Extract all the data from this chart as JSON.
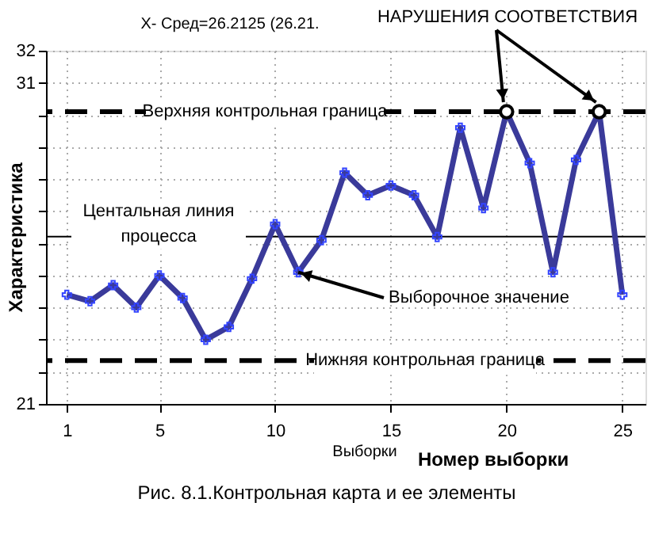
{
  "chart_data": {
    "type": "line",
    "title": "X-   Сред=26.2125 (26.21.",
    "xlabel": "Номер выборки",
    "ylabel": "Характеристика",
    "x": [
      1,
      2,
      3,
      4,
      5,
      6,
      7,
      8,
      9,
      10,
      11,
      12,
      13,
      14,
      15,
      16,
      17,
      18,
      19,
      20,
      21,
      22,
      23,
      24,
      25
    ],
    "series": [
      {
        "color": "#3a3a9a",
        "values": [
          24.4,
          24.2,
          24.7,
          24.0,
          25.0,
          24.3,
          23.0,
          23.4,
          24.9,
          26.6,
          25.1,
          26.1,
          28.2,
          27.5,
          27.8,
          27.5,
          26.2,
          29.6,
          27.1,
          30.1,
          28.5,
          25.1,
          28.6,
          30.1,
          24.4
        ]
      }
    ],
    "xlim": [
      0.1,
      26
    ],
    "xticks": [
      1,
      5,
      10,
      15,
      20,
      25
    ],
    "ylim": [
      21,
      32
    ],
    "yticks": [
      21,
      {
        "value": 22,
        "label": null
      },
      {
        "value": 23,
        "label": null
      },
      {
        "value": 24,
        "label": null
      },
      {
        "value": 25,
        "label": null
      },
      {
        "value": 26,
        "label": null
      },
      {
        "value": 27,
        "label": null
      },
      {
        "value": 28,
        "label": null
      },
      {
        "value": 29,
        "label": null
      },
      {
        "value": 30,
        "label": null
      },
      31,
      32
    ],
    "ref_lines": [
      {
        "axis": "y",
        "value": 30.1,
        "label": "Верхняя контрольная граница",
        "color": "#000000",
        "line_style": "dashed"
      },
      {
        "axis": "y",
        "value": 26.2125,
        "label": "Центальная линия процесса",
        "color": "#000000",
        "line_style": "solid"
      },
      {
        "axis": "y",
        "value": 22.35,
        "label": "Нижняя контрольная граница",
        "color": "#000000",
        "line_style": "dashed"
      }
    ],
    "annotations": [
      {
        "text": "НАРУШЕНИЯ СООТВЕТСТВИЯ",
        "x": 20,
        "y": 30.1
      },
      {
        "text": "Выборочное значение",
        "x": 11,
        "y": 25.1
      },
      "Выборки",
      "Рис. 8.1.Контрольная карта и ее элементы"
    ],
    "grid": true,
    "marker": "cross",
    "line_style": "solid"
  }
}
